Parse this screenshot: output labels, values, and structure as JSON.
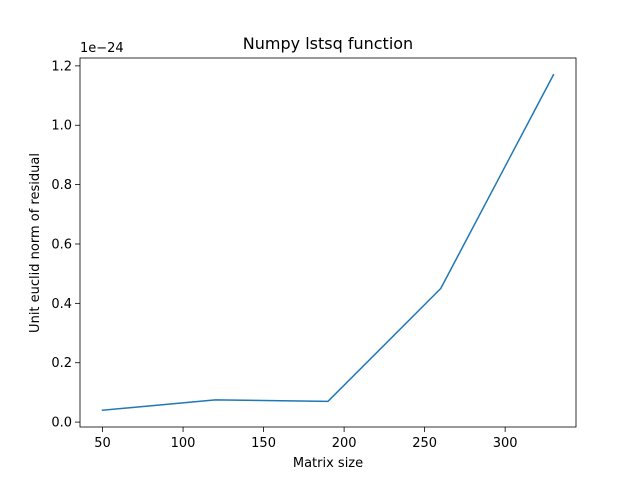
{
  "chart_data": {
    "type": "line",
    "title": "Numpy lstsq function",
    "xlabel": "Matrix size",
    "ylabel": "Unit euclid norm of residual",
    "y_offset_label": "1e−24",
    "x": [
      50,
      120,
      190,
      260,
      330
    ],
    "series": [
      {
        "values": [
          0.04,
          0.075,
          0.07,
          0.45,
          1.17
        ],
        "color": "#1f77b4"
      }
    ],
    "xlim": [
      36,
      344
    ],
    "ylim": [
      -0.0165,
      1.2265
    ],
    "xticks": [
      50,
      100,
      150,
      200,
      250,
      300
    ],
    "xtick_labels": [
      "50",
      "100",
      "150",
      "200",
      "250",
      "300"
    ],
    "yticks": [
      0.0,
      0.2,
      0.4,
      0.6,
      0.8,
      1.0,
      1.2
    ],
    "ytick_labels": [
      "0.0",
      "0.2",
      "0.4",
      "0.6",
      "0.8",
      "1.0",
      "1.2"
    ],
    "grid": false,
    "legend": "none"
  }
}
